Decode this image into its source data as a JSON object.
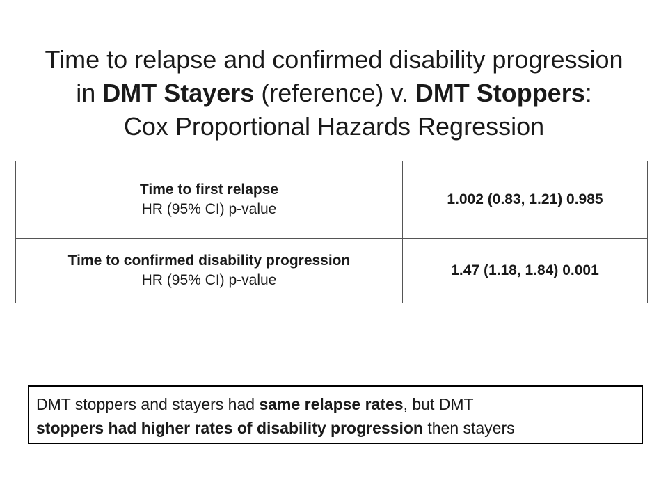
{
  "title": {
    "line1": "Time to relapse and confirmed disability progression",
    "line2_prefix": "in ",
    "line2_group1": "DMT Stayers",
    "line2_middle": " (reference) v. ",
    "line2_group2": "DMT Stoppers",
    "line2_suffix": ":",
    "line3": "Cox Proportional Hazards Regression"
  },
  "table": {
    "rows": [
      {
        "label": "Time to first relapse",
        "sublabel": "HR (95% CI) p-value",
        "value": "1.002 (0.83, 1.21) 0.985"
      },
      {
        "label": "Time to confirmed disability progression",
        "sublabel": "HR (95% CI) p-value",
        "value": "1.47 (1.18, 1.84) 0.001"
      }
    ]
  },
  "conclusion": {
    "part1": "DMT stoppers and stayers had ",
    "bold1": "same relapse rates",
    "part2": ", but DMT",
    "bold2": "stoppers had higher rates of disability progression",
    "part3": " then stayers"
  },
  "colors": {
    "text": "#1a1a1a",
    "table_border": "#555555",
    "box_border": "#000000",
    "background": "#ffffff"
  }
}
